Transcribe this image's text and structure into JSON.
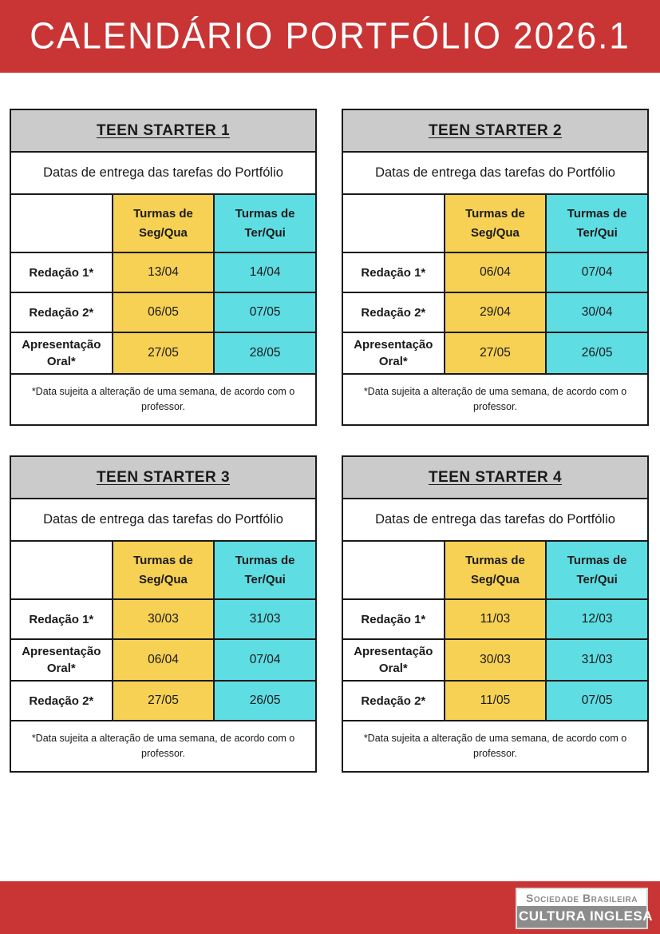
{
  "banner": {
    "title": "CALENDÁRIO PORTFÓLIO 2026.1"
  },
  "colors": {
    "banner_red": "#c93534",
    "table_title_gray": "#cbcbcb",
    "seg_qua_yellow": "#f7d154",
    "ter_qui_cyan": "#5edde3",
    "border_black": "#1a1a1a",
    "logo_gray": "#8c8c8c"
  },
  "tables": [
    {
      "title": "TEEN STARTER 1",
      "subtitle": "Datas de entrega das tarefas do Portfólio",
      "columns": [
        "Turmas de Seg/Qua",
        "Turmas de Ter/Qui"
      ],
      "rows": [
        {
          "label": "Redação 1*",
          "dates": [
            "13/04",
            "14/04"
          ]
        },
        {
          "label": "Redação 2*",
          "dates": [
            "06/05",
            "07/05"
          ]
        },
        {
          "label": "Apresentação Oral*",
          "dates": [
            "27/05",
            "28/05"
          ]
        }
      ],
      "note": "*Data sujeita a alteração de uma semana, de acordo com o professor."
    },
    {
      "title": "TEEN STARTER 2",
      "subtitle": "Datas de entrega das tarefas do Portfólio",
      "columns": [
        "Turmas de Seg/Qua",
        "Turmas de Ter/Qui"
      ],
      "rows": [
        {
          "label": "Redação 1*",
          "dates": [
            "06/04",
            "07/04"
          ]
        },
        {
          "label": "Redação 2*",
          "dates": [
            "29/04",
            "30/04"
          ]
        },
        {
          "label": "Apresentação Oral*",
          "dates": [
            "27/05",
            "26/05"
          ]
        }
      ],
      "note": "*Data sujeita a alteração de uma semana, de acordo com o professor."
    },
    {
      "title": "TEEN STARTER 3",
      "subtitle": "Datas de entrega das tarefas do Portfólio",
      "columns": [
        "Turmas de Seg/Qua",
        "Turmas de Ter/Qui"
      ],
      "rows": [
        {
          "label": "Redação 1*",
          "dates": [
            "30/03",
            "31/03"
          ]
        },
        {
          "label": "Apresentação Oral*",
          "dates": [
            "06/04",
            "07/04"
          ]
        },
        {
          "label": "Redação 2*",
          "dates": [
            "27/05",
            "26/05"
          ]
        }
      ],
      "note": "*Data sujeita a alteração de uma semana, de acordo com o professor."
    },
    {
      "title": "TEEN STARTER 4",
      "subtitle": "Datas de entrega das tarefas do Portfólio",
      "columns": [
        "Turmas de Seg/Qua",
        "Turmas de Ter/Qui"
      ],
      "rows": [
        {
          "label": "Redação 1*",
          "dates": [
            "11/03",
            "12/03"
          ]
        },
        {
          "label": "Apresentação Oral*",
          "dates": [
            "30/03",
            "31/03"
          ]
        },
        {
          "label": "Redação 2*",
          "dates": [
            "11/05",
            "07/05"
          ]
        }
      ],
      "note": "*Data sujeita a alteração de uma semana, de acordo com o professor."
    }
  ],
  "footer": {
    "logo_top": "Sociedade Brasileira",
    "logo_bottom": "CULTURA INGLESA"
  }
}
